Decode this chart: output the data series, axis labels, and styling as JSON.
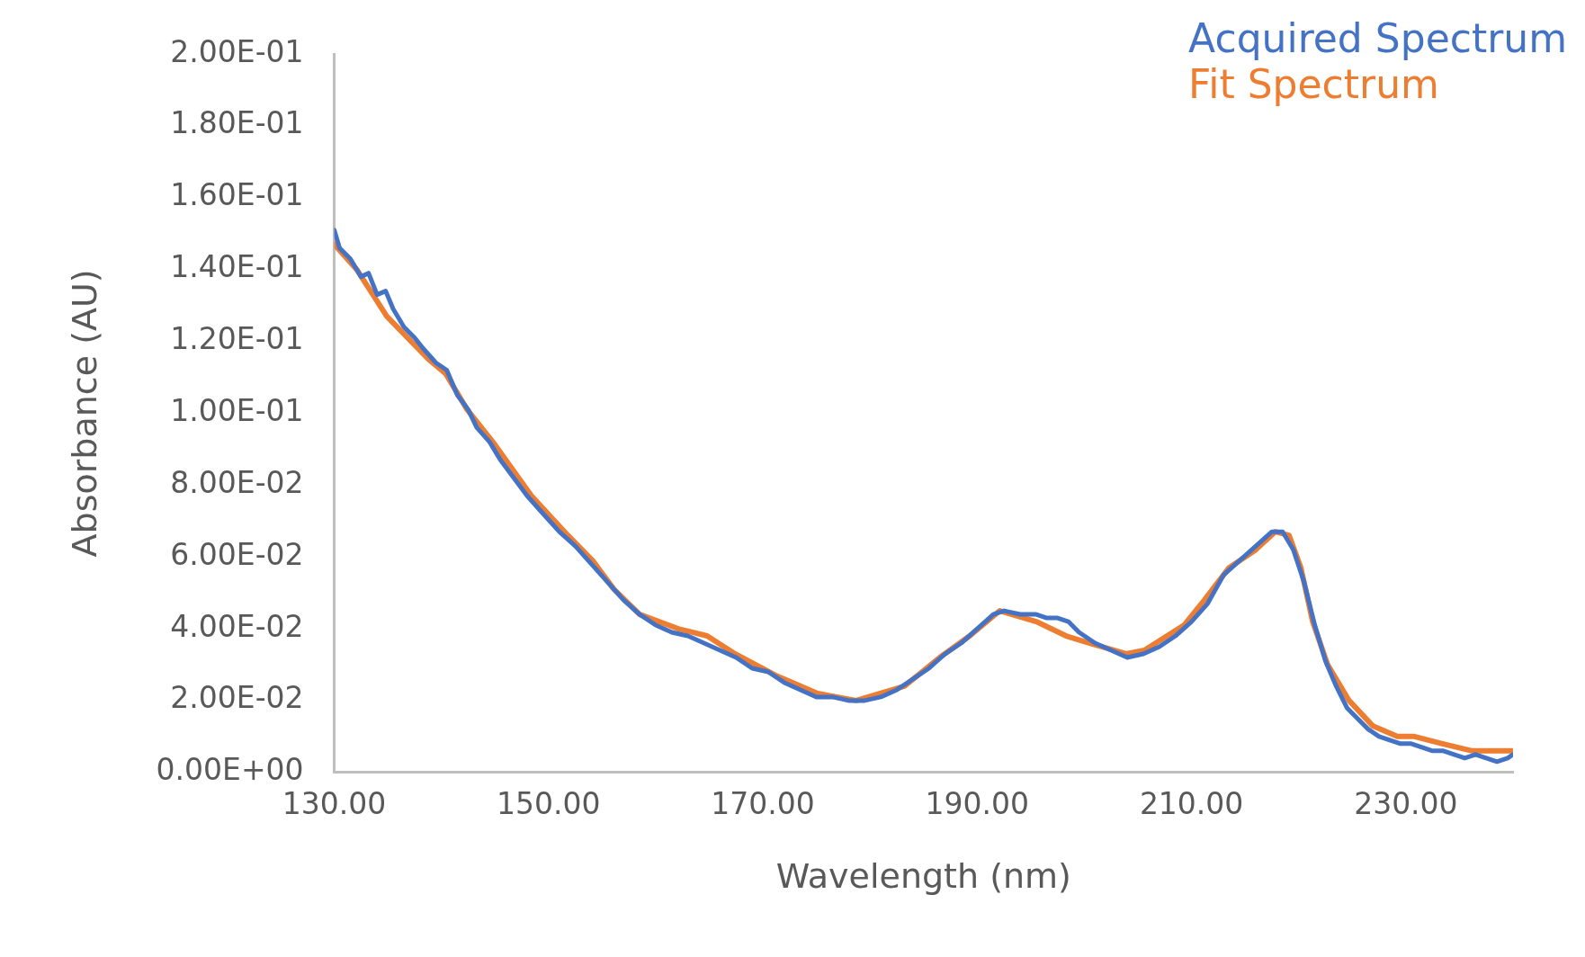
{
  "chart_data": {
    "type": "line",
    "xlabel": "Wavelength (nm)",
    "ylabel": "Absorbance (AU)",
    "xlim": [
      130,
      240
    ],
    "xticks": [
      {
        "value": 130,
        "label": "130.00"
      },
      {
        "value": 150,
        "label": "150.00"
      },
      {
        "value": 170,
        "label": "170.00"
      },
      {
        "value": 190,
        "label": "190.00"
      },
      {
        "value": 210,
        "label": "210.00"
      },
      {
        "value": 230,
        "label": "230.00"
      }
    ],
    "ylim": [
      0,
      0.2
    ],
    "yticks": [
      {
        "value": 0,
        "label": "0.00E+00"
      },
      {
        "value": 0.02,
        "label": "2.00E-02"
      },
      {
        "value": 0.04,
        "label": "4.00E-02"
      },
      {
        "value": 0.06,
        "label": "6.00E-02"
      },
      {
        "value": 0.08,
        "label": "8.00E-02"
      },
      {
        "value": 0.1,
        "label": "1.00E-01"
      },
      {
        "value": 0.12,
        "label": "1.20E-01"
      },
      {
        "value": 0.14,
        "label": "1.40E-01"
      },
      {
        "value": 0.16,
        "label": "1.60E-01"
      },
      {
        "value": 0.18,
        "label": "1.80E-01"
      },
      {
        "value": 0.2,
        "label": "2.00E-01"
      }
    ],
    "grid": false,
    "legend": "top right",
    "marker": "none",
    "line_style": "solid",
    "series": [
      {
        "name": "Acquired Spectrum",
        "color": "#4472c4",
        "x": [
          130,
          130.5,
          131.5,
          132.5,
          133.2,
          134,
          134.8,
          135.5,
          136.5,
          137.5,
          138.3,
          139.5,
          140.5,
          141.5,
          142.5,
          143.3,
          144.5,
          145.5,
          146.5,
          148,
          149.5,
          151,
          152.5,
          154,
          155.5,
          157,
          158.5,
          160,
          161.5,
          163,
          164.5,
          166,
          167.5,
          169,
          170.5,
          172,
          173.5,
          175,
          176.5,
          178,
          179.5,
          181,
          182.5,
          184,
          185.5,
          187,
          188.5,
          190,
          191.5,
          192.5,
          194,
          195.5,
          196.5,
          197.5,
          198.5,
          199.5,
          201,
          202.5,
          204,
          205.5,
          207,
          208.5,
          210,
          211.5,
          213,
          214.5,
          216,
          217.5,
          218.5,
          219.5,
          220.5,
          221.5,
          222.5,
          223.5,
          224.5,
          225.5,
          226.5,
          227.5,
          228.5,
          229.5,
          230.5,
          231.5,
          232.5,
          233.5,
          234.5,
          235.5,
          236.5,
          237.5,
          238.5,
          239.5,
          240
        ],
        "values": [
          0.151,
          0.146,
          0.143,
          0.138,
          0.139,
          0.133,
          0.134,
          0.129,
          0.124,
          0.121,
          0.118,
          0.114,
          0.112,
          0.105,
          0.101,
          0.096,
          0.092,
          0.087,
          0.083,
          0.077,
          0.072,
          0.067,
          0.063,
          0.058,
          0.053,
          0.048,
          0.044,
          0.041,
          0.039,
          0.038,
          0.036,
          0.034,
          0.032,
          0.029,
          0.028,
          0.025,
          0.023,
          0.021,
          0.021,
          0.02,
          0.02,
          0.021,
          0.023,
          0.026,
          0.029,
          0.033,
          0.036,
          0.04,
          0.044,
          0.045,
          0.044,
          0.044,
          0.043,
          0.043,
          0.042,
          0.039,
          0.036,
          0.034,
          0.032,
          0.033,
          0.035,
          0.038,
          0.042,
          0.047,
          0.055,
          0.059,
          0.063,
          0.067,
          0.067,
          0.062,
          0.053,
          0.041,
          0.031,
          0.024,
          0.018,
          0.015,
          0.012,
          0.01,
          0.009,
          0.008,
          0.008,
          0.007,
          0.006,
          0.006,
          0.005,
          0.004,
          0.005,
          0.004,
          0.003,
          0.004,
          0.005
        ]
      },
      {
        "name": "Fit Spectrum",
        "color": "#ed7d31",
        "x": [
          130,
          132.1,
          134.9,
          138.8,
          140.4,
          142.4,
          144.8,
          148.4,
          151.8,
          154.1,
          156.1,
          158.5,
          162.1,
          164.8,
          167.4,
          171.2,
          175.1,
          178.7,
          183.2,
          186.5,
          189.3,
          192.1,
          195.5,
          198.3,
          200.5,
          203.9,
          205.6,
          209.3,
          211.2,
          213.5,
          216,
          217.8,
          219.1,
          220.2,
          221.3,
          222.7,
          224.7,
          226.9,
          229.2,
          230.8,
          233.4,
          236.2,
          240
        ],
        "values": [
          0.147,
          0.14,
          0.127,
          0.115,
          0.111,
          0.101,
          0.092,
          0.077,
          0.066,
          0.059,
          0.051,
          0.044,
          0.04,
          0.038,
          0.033,
          0.027,
          0.022,
          0.02,
          0.024,
          0.032,
          0.038,
          0.045,
          0.042,
          0.038,
          0.036,
          0.033,
          0.034,
          0.041,
          0.048,
          0.057,
          0.062,
          0.067,
          0.066,
          0.057,
          0.042,
          0.03,
          0.02,
          0.013,
          0.01,
          0.01,
          0.008,
          0.006,
          0.006
        ]
      }
    ]
  }
}
